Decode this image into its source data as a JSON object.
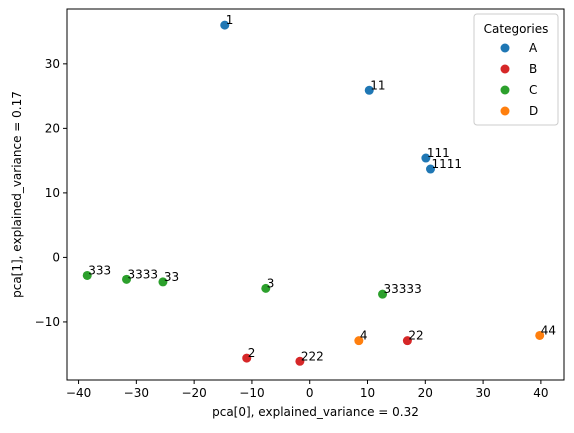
{
  "chart_data": {
    "type": "scatter",
    "xlabel": "pca[0], explained_variance = 0.32",
    "ylabel": "pca[1], explained_variance = 0.17",
    "xlim": [
      -42,
      44
    ],
    "ylim": [
      -19,
      38.5
    ],
    "xticks": [
      -40,
      -30,
      -20,
      -10,
      0,
      10,
      20,
      30,
      40
    ],
    "yticks": [
      -10,
      0,
      10,
      20,
      30
    ],
    "grid": false,
    "legend": {
      "title": "Categories",
      "placement": "top-right",
      "entries": [
        {
          "name": "A",
          "color": "#1f77b4"
        },
        {
          "name": "B",
          "color": "#d62728"
        },
        {
          "name": "C",
          "color": "#2ca02c"
        },
        {
          "name": "D",
          "color": "#ff7f0e"
        }
      ]
    },
    "series": [
      {
        "name": "A",
        "color": "#1f77b4",
        "points": [
          {
            "x": -14.7,
            "y": 36.0,
            "label": "1"
          },
          {
            "x": 10.3,
            "y": 25.9,
            "label": "11"
          },
          {
            "x": 20.1,
            "y": 15.4,
            "label": "111"
          },
          {
            "x": 20.9,
            "y": 13.7,
            "label": "1111"
          }
        ]
      },
      {
        "name": "B",
        "color": "#d62728",
        "points": [
          {
            "x": -10.9,
            "y": -15.6,
            "label": "2"
          },
          {
            "x": -1.7,
            "y": -16.1,
            "label": "222"
          },
          {
            "x": 16.9,
            "y": -12.9,
            "label": "22"
          }
        ]
      },
      {
        "name": "C",
        "color": "#2ca02c",
        "points": [
          {
            "x": -38.5,
            "y": -2.8,
            "label": "333"
          },
          {
            "x": -31.7,
            "y": -3.4,
            "label": "3333"
          },
          {
            "x": -25.4,
            "y": -3.8,
            "label": "33"
          },
          {
            "x": -7.6,
            "y": -4.8,
            "label": "3"
          },
          {
            "x": 12.6,
            "y": -5.7,
            "label": "33333"
          }
        ]
      },
      {
        "name": "D",
        "color": "#ff7f0e",
        "points": [
          {
            "x": 8.5,
            "y": -12.9,
            "label": "4"
          },
          {
            "x": 39.8,
            "y": -12.1,
            "label": "44"
          }
        ]
      }
    ]
  }
}
